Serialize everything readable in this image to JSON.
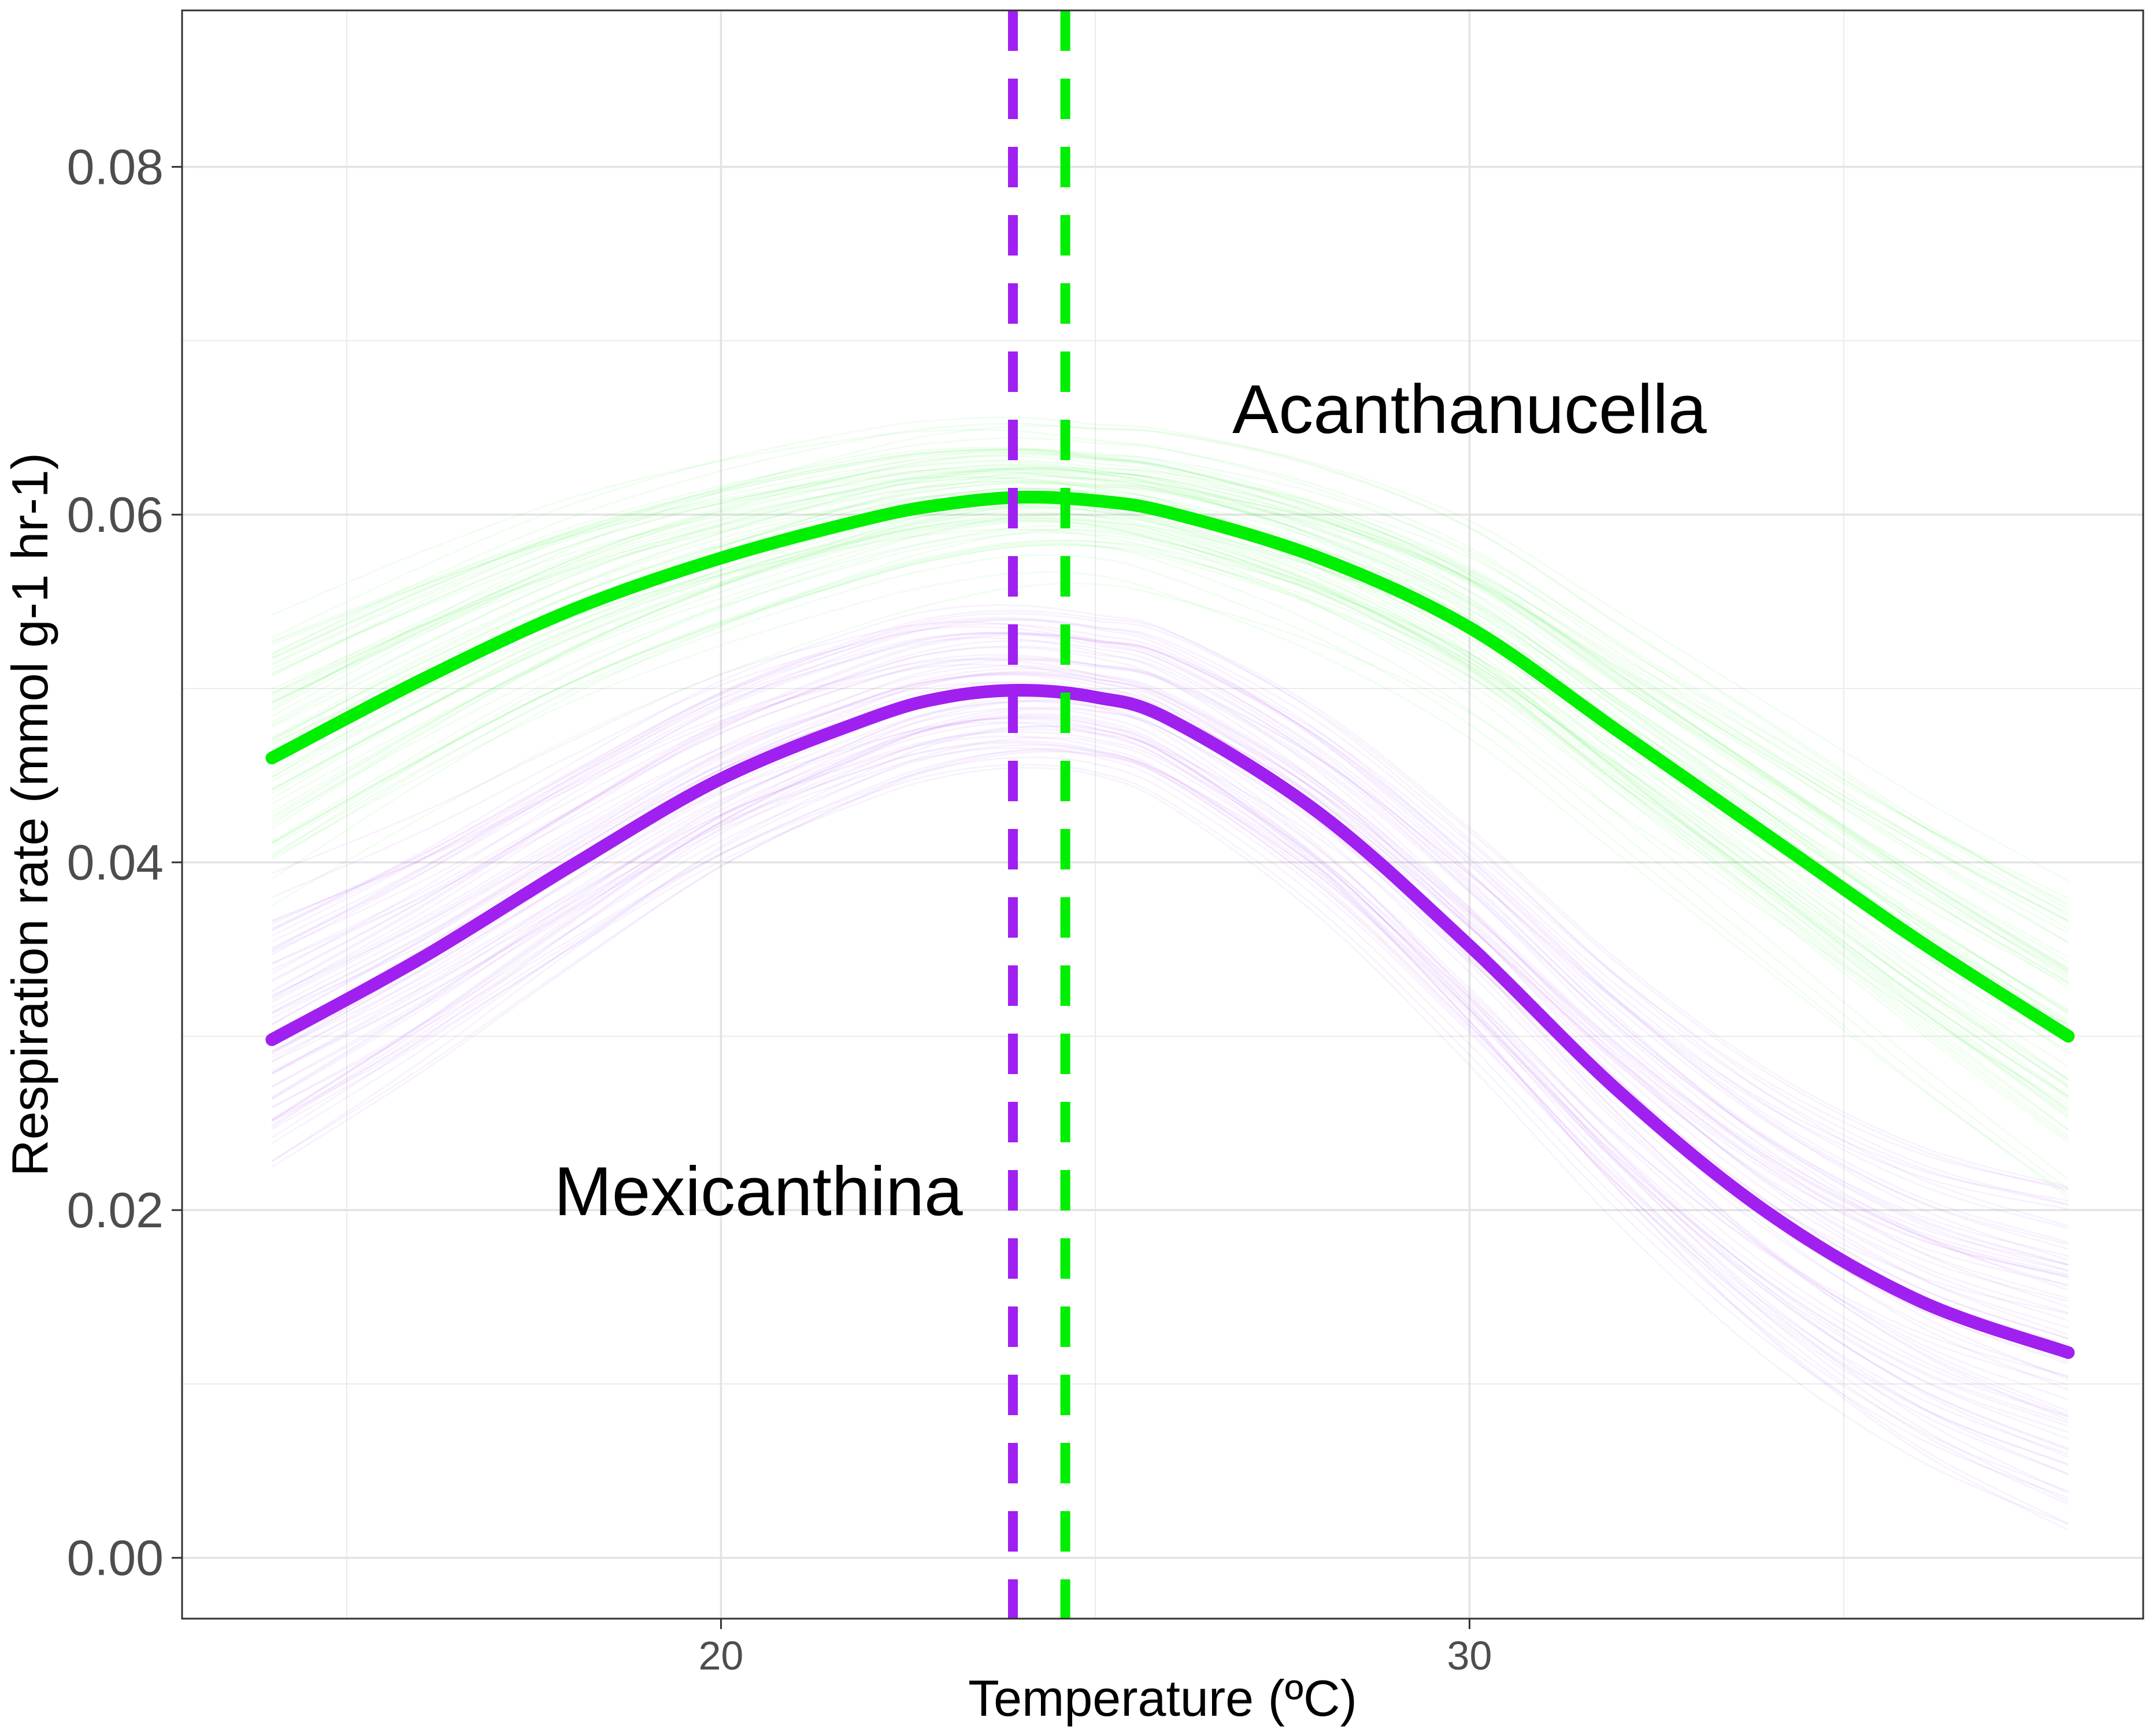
{
  "chart_data": {
    "type": "line",
    "xlabel": "Temperature (ºC)",
    "ylabel": "Respiration rate (mmol g-1 hr-1)",
    "xlim": [
      12.8,
      39.0
    ],
    "ylim": [
      -0.0035,
      0.089
    ],
    "x_ticks": [
      20,
      30
    ],
    "x_tick_labels": [
      "20",
      "30"
    ],
    "y_ticks": [
      0.0,
      0.02,
      0.04,
      0.06,
      0.08
    ],
    "y_tick_labels": [
      "0.00",
      "0.02",
      "0.04",
      "0.06",
      "0.08"
    ],
    "grid": true,
    "legend": "none",
    "series": [
      {
        "name": "Acanthanucella",
        "color": "#00ee00",
        "x": [
          14,
          16,
          18,
          20,
          22,
          23,
          24,
          25,
          26,
          28,
          30,
          32,
          34,
          36,
          38
        ],
        "y": [
          0.046,
          0.0505,
          0.0545,
          0.0575,
          0.0598,
          0.0606,
          0.061,
          0.0608,
          0.0601,
          0.0575,
          0.0535,
          0.0475,
          0.0415,
          0.0355,
          0.03
        ]
      },
      {
        "name": "Mexicanthina",
        "color": "#a020f0",
        "x": [
          14,
          16,
          18,
          20,
          22,
          23,
          24,
          25,
          26,
          28,
          30,
          32,
          34,
          36,
          38
        ],
        "y": [
          0.0298,
          0.0345,
          0.0398,
          0.0448,
          0.0483,
          0.0495,
          0.0499,
          0.0495,
          0.0482,
          0.0428,
          0.0352,
          0.0268,
          0.0198,
          0.0148,
          0.0118
        ]
      }
    ],
    "vlines": [
      {
        "x": 23.9,
        "color": "#a020f0",
        "style": "dashed"
      },
      {
        "x": 24.6,
        "color": "#00ee00",
        "style": "dashed"
      }
    ],
    "annotations": [
      {
        "text": "Acanthanucella",
        "x": 30.0,
        "y": 0.0647
      },
      {
        "text": "Mexicanthina",
        "x": 20.5,
        "y": 0.0197
      }
    ],
    "background_ensemble_lines": true
  }
}
